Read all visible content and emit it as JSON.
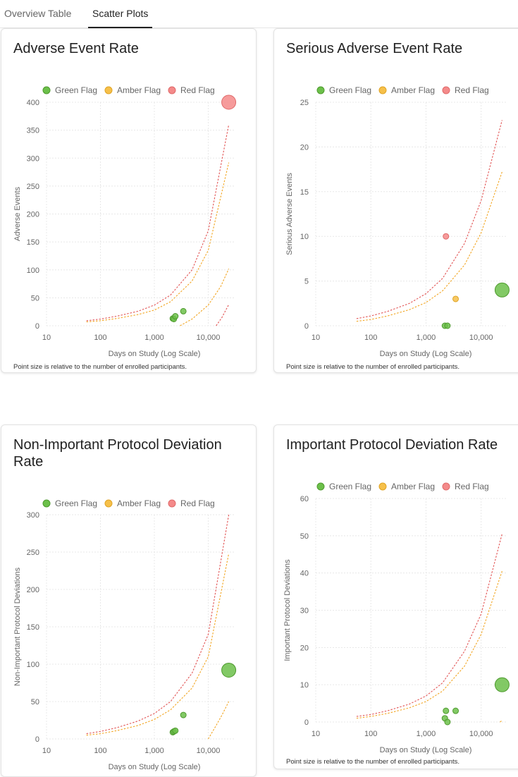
{
  "tabs": [
    {
      "label": "Overview Table",
      "active": false
    },
    {
      "label": "Scatter Plots",
      "active": true
    }
  ],
  "colors": {
    "green": "#6cc04a",
    "amber": "#f6c04a",
    "red": "#f48a8a",
    "green_stroke": "#4e9a2e",
    "amber_stroke": "#e0a424",
    "red_stroke": "#e06a6a",
    "red_line": "#e25555",
    "amber_line": "#f2a623",
    "grid": "#e8e8e8"
  },
  "legend": [
    "Green Flag",
    "Amber Flag",
    "Red Flag"
  ],
  "footnote": "Point size is relative to the number of enrolled participants.",
  "chart_data": [
    {
      "type": "scatter",
      "title": "Adverse Event Rate",
      "xlabel": "Days on Study (Log Scale)",
      "ylabel": "Adverse Events",
      "x_scale": "log",
      "xlim": [
        10,
        30000
      ],
      "xticks": [
        10,
        100,
        1000,
        10000
      ],
      "xtick_labels": [
        "10",
        "100",
        "1,000",
        "10,000"
      ],
      "ylim": [
        0,
        400
      ],
      "yticks": [
        0,
        50,
        100,
        150,
        200,
        250,
        300,
        350,
        400
      ],
      "legend_position": "top",
      "grid": true,
      "points": [
        {
          "x": 2200,
          "y": 13,
          "flag": "green",
          "size": "small"
        },
        {
          "x": 2300,
          "y": 12,
          "flag": "green",
          "size": "small"
        },
        {
          "x": 2450,
          "y": 17,
          "flag": "green",
          "size": "small"
        },
        {
          "x": 3450,
          "y": 26,
          "flag": "green",
          "size": "small"
        },
        {
          "x": 24000,
          "y": 400,
          "flag": "red",
          "size": "large"
        }
      ],
      "bounds": [
        {
          "flag": "red",
          "x": [
            55,
            100,
            200,
            500,
            1000,
            2000,
            5000,
            10000,
            24000
          ],
          "y": [
            9,
            12,
            17,
            26,
            37,
            55,
            100,
            170,
            360
          ]
        },
        {
          "flag": "amber",
          "x": [
            55,
            100,
            200,
            500,
            1000,
            2000,
            5000,
            10000,
            24000
          ],
          "y": [
            7,
            9,
            13,
            20,
            28,
            43,
            80,
            135,
            292
          ]
        },
        {
          "flag": "amber",
          "x": [
            3000,
            5000,
            10000,
            17000,
            24000
          ],
          "y": [
            0,
            12,
            37,
            70,
            102
          ]
        },
        {
          "flag": "red",
          "x": [
            14000,
            18000,
            24000
          ],
          "y": [
            0,
            15,
            38
          ]
        }
      ]
    },
    {
      "type": "scatter",
      "title": "Serious Adverse Event Rate",
      "xlabel": "Days on Study (Log Scale)",
      "ylabel": "Serious Adverse Events",
      "x_scale": "log",
      "xlim": [
        10,
        30000
      ],
      "xticks": [
        10,
        100,
        1000,
        10000
      ],
      "xtick_labels": [
        "10",
        "100",
        "1,000",
        "10,000"
      ],
      "ylim": [
        0,
        25
      ],
      "yticks": [
        0,
        5,
        10,
        15,
        20,
        25
      ],
      "legend_position": "top",
      "grid": true,
      "points": [
        {
          "x": 2200,
          "y": 0,
          "flag": "green",
          "size": "small"
        },
        {
          "x": 2450,
          "y": 0,
          "flag": "green",
          "size": "small"
        },
        {
          "x": 2300,
          "y": 10,
          "flag": "red",
          "size": "small"
        },
        {
          "x": 3450,
          "y": 3,
          "flag": "amber",
          "size": "small"
        },
        {
          "x": 24000,
          "y": 4,
          "flag": "green",
          "size": "large"
        }
      ],
      "bounds": [
        {
          "flag": "red",
          "x": [
            55,
            100,
            200,
            500,
            1000,
            2000,
            5000,
            10000,
            24000
          ],
          "y": [
            0.8,
            1.1,
            1.6,
            2.5,
            3.6,
            5.3,
            9.2,
            14,
            23
          ]
        },
        {
          "flag": "amber",
          "x": [
            55,
            100,
            200,
            500,
            1000,
            2000,
            5000,
            10000,
            24000
          ],
          "y": [
            0.5,
            0.7,
            1.1,
            1.8,
            2.6,
            3.9,
            6.8,
            10.4,
            17.2
          ]
        }
      ]
    },
    {
      "type": "scatter",
      "title": "Non-Important Protocol Deviation Rate",
      "xlabel": "Days on Study (Log Scale)",
      "ylabel": "Non-Important Protocol Deviations",
      "x_scale": "log",
      "xlim": [
        10,
        30000
      ],
      "xticks": [
        10,
        100,
        1000,
        10000
      ],
      "xtick_labels": [
        "10",
        "100",
        "1,000",
        "10,000"
      ],
      "ylim": [
        0,
        300
      ],
      "yticks": [
        0,
        50,
        100,
        150,
        200,
        250,
        300
      ],
      "legend_position": "top",
      "grid": true,
      "points": [
        {
          "x": 2200,
          "y": 9,
          "flag": "green",
          "size": "small"
        },
        {
          "x": 2300,
          "y": 10,
          "flag": "green",
          "size": "small"
        },
        {
          "x": 2450,
          "y": 11,
          "flag": "green",
          "size": "small"
        },
        {
          "x": 3450,
          "y": 32,
          "flag": "green",
          "size": "small"
        },
        {
          "x": 24000,
          "y": 92,
          "flag": "green",
          "size": "large"
        }
      ],
      "bounds": [
        {
          "flag": "red",
          "x": [
            55,
            100,
            200,
            500,
            1000,
            2000,
            5000,
            10000,
            24000
          ],
          "y": [
            7,
            10,
            15,
            24,
            34,
            50,
            88,
            140,
            300
          ]
        },
        {
          "flag": "amber",
          "x": [
            55,
            100,
            200,
            500,
            1000,
            2000,
            5000,
            10000,
            24000
          ],
          "y": [
            5,
            7,
            11,
            18,
            26,
            39,
            68,
            110,
            248
          ]
        },
        {
          "flag": "amber",
          "x": [
            10000,
            14000,
            18000,
            24000
          ],
          "y": [
            0,
            18,
            32,
            50
          ]
        }
      ]
    },
    {
      "type": "scatter",
      "title": "Important Protocol Deviation Rate",
      "xlabel": "Days on Study (Log Scale)",
      "ylabel": "Important Protocol Deviations",
      "x_scale": "log",
      "xlim": [
        10,
        30000
      ],
      "xticks": [
        10,
        100,
        1000,
        10000
      ],
      "xtick_labels": [
        "10",
        "100",
        "1,000",
        "10,000"
      ],
      "ylim": [
        0,
        60
      ],
      "yticks": [
        0,
        10,
        20,
        30,
        40,
        50,
        60
      ],
      "legend_position": "top",
      "grid": true,
      "points": [
        {
          "x": 2200,
          "y": 1,
          "flag": "green",
          "size": "small"
        },
        {
          "x": 2300,
          "y": 3,
          "flag": "green",
          "size": "small"
        },
        {
          "x": 2450,
          "y": 0,
          "flag": "green",
          "size": "small"
        },
        {
          "x": 3450,
          "y": 3,
          "flag": "green",
          "size": "small"
        },
        {
          "x": 24000,
          "y": 10,
          "flag": "green",
          "size": "large"
        }
      ],
      "bounds": [
        {
          "flag": "red",
          "x": [
            55,
            100,
            200,
            500,
            1000,
            2000,
            5000,
            10000,
            24000
          ],
          "y": [
            1.5,
            2.0,
            3.0,
            4.8,
            7,
            10.5,
            19,
            29,
            50.5
          ]
        },
        {
          "flag": "amber",
          "x": [
            55,
            100,
            200,
            500,
            1000,
            2000,
            5000,
            10000,
            24000
          ],
          "y": [
            1.0,
            1.5,
            2.3,
            3.8,
            5.5,
            8.3,
            15,
            23.5,
            40.5
          ]
        },
        {
          "flag": "amber",
          "x": [
            22000,
            24000
          ],
          "y": [
            0,
            0.4
          ]
        }
      ]
    }
  ]
}
